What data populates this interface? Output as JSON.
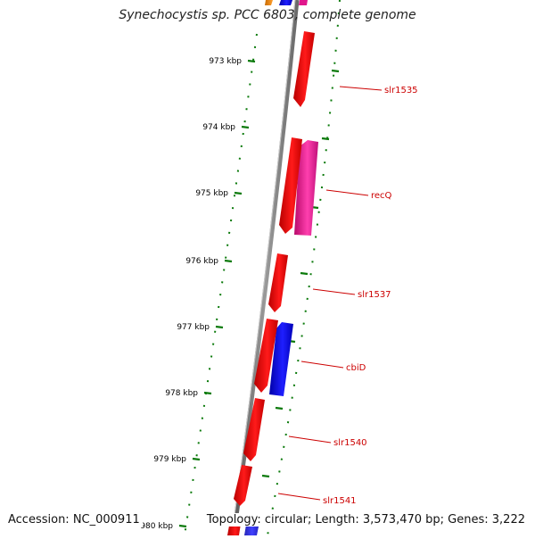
{
  "header": {
    "title": "Synechocystis sp. PCC 6803, complete genome"
  },
  "footer": {
    "accession": "Accession: NC_000911",
    "topology": "Topology: circular; Length: 3,573,470 bp; Genes: 3,222"
  },
  "ruler": {
    "ticks": [
      "973 kbp",
      "974 kbp",
      "975 kbp",
      "976 kbp",
      "977 kbp",
      "978 kbp",
      "979 kbp",
      "980 kbp"
    ]
  },
  "genes": [
    {
      "name": "slr1535",
      "strand": "plus",
      "color": "#e81010"
    },
    {
      "name": "recQ",
      "strand": "minus",
      "color": "#e0168c"
    },
    {
      "name": "slr1537",
      "strand": "plus",
      "color": "#e81010"
    },
    {
      "name": "cbiD",
      "strand": "minus",
      "color": "#1414e6"
    },
    {
      "name": "slr1540",
      "strand": "plus",
      "color": "#e81010"
    },
    {
      "name": "slr1541",
      "strand": "plus",
      "color": "#e81010"
    }
  ],
  "colors": {
    "backbone": "#808080",
    "ruler": "#0b7a0b",
    "label": "#cc0000",
    "gene_plus": "#e81010",
    "gene_blue": "#1414e6",
    "gene_pink": "#e0168c",
    "gene_orange": "#f08a10"
  }
}
